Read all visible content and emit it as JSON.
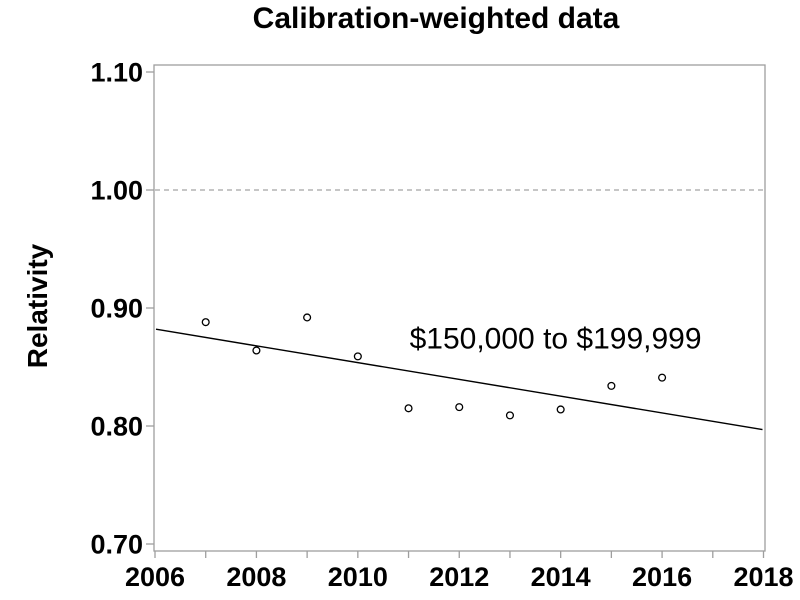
{
  "figure": {
    "title": "Calibration-weighted data",
    "ylabel": "Relativity"
  },
  "chart_data": {
    "type": "scatter",
    "title": "Calibration-weighted data",
    "xlabel": "",
    "ylabel": "Relativity",
    "xlim": [
      2006,
      2018
    ],
    "ylim": [
      0.7,
      1.1
    ],
    "grid": false,
    "x_tick_years": [
      2006,
      2007,
      2008,
      2009,
      2010,
      2011,
      2012,
      2013,
      2014,
      2015,
      2016,
      2017,
      2018
    ],
    "x_labeled_ticks": [
      2006,
      2008,
      2010,
      2012,
      2014,
      2016,
      2018
    ],
    "y_ticks": [
      0.7,
      0.8,
      0.9,
      1.0,
      1.1
    ],
    "y_tick_labels": [
      "0.70",
      "0.80",
      "0.90",
      "1.00",
      "1.10"
    ],
    "reference_line": {
      "y": 1.0,
      "style": "dashed"
    },
    "marker": "open-circle",
    "points": [
      {
        "x": 2007,
        "y": 0.888
      },
      {
        "x": 2008,
        "y": 0.864
      },
      {
        "x": 2009,
        "y": 0.892
      },
      {
        "x": 2010,
        "y": 0.859
      },
      {
        "x": 2011,
        "y": 0.815
      },
      {
        "x": 2012,
        "y": 0.816
      },
      {
        "x": 2013,
        "y": 0.809
      },
      {
        "x": 2014,
        "y": 0.814
      },
      {
        "x": 2015,
        "y": 0.834
      },
      {
        "x": 2016,
        "y": 0.841
      }
    ],
    "trend_line": {
      "x1": 2006,
      "y1": 0.882,
      "x2": 2018,
      "y2": 0.797
    },
    "annotation": {
      "text": "$150,000 to $199,999",
      "x": 2013.9,
      "y": 0.875
    },
    "colors": {
      "axis": "#9e9e9e",
      "reference": "#a3a3a3",
      "data": "#000000",
      "background": "#ffffff"
    }
  }
}
